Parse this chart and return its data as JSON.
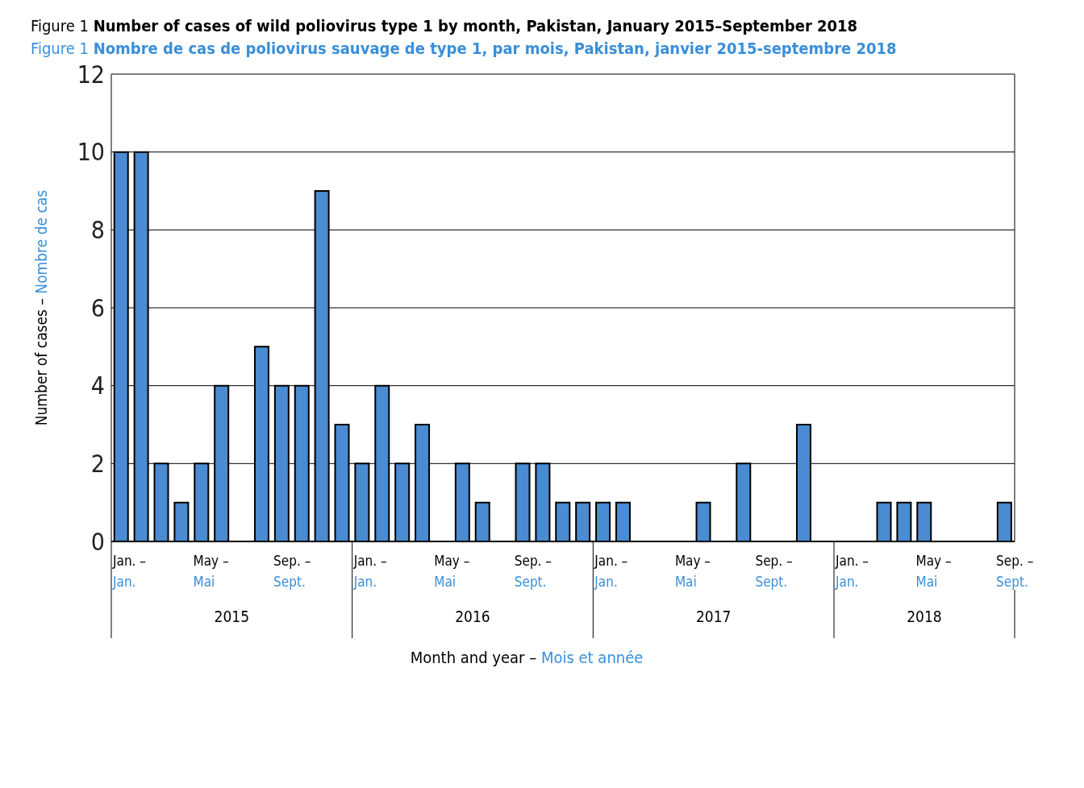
{
  "chart_data": {
    "type": "bar",
    "title": "Figure 1  Number of cases of wild poliovirus type 1 by month, Pakistan, January 2015–September 2018",
    "subtitle": "Figure 1  Nombre de cas de poliovirus sauvage de type 1, par mois, Pakistan, janvier 2015-septembre 2018",
    "categories": [
      "Jan. – Jan.",
      null,
      null,
      null,
      "May – Mai",
      null,
      null,
      null,
      "Sep. – Sept.",
      null,
      null,
      null,
      "Jan. – Jan.",
      null,
      null,
      null,
      "May – Mai",
      null,
      null,
      null,
      "Sep. – Sept.",
      null,
      null,
      null,
      "Jan. – Jan.",
      null,
      null,
      null,
      "May – Mai",
      null,
      null,
      null,
      "Sep. – Sept.",
      null,
      null,
      null,
      "Jan. – Jan.",
      null,
      null,
      null,
      "May – Mai",
      null,
      null,
      null,
      "Sep. – Sept."
    ],
    "values": [
      10,
      10,
      2,
      1,
      2,
      4,
      0,
      5,
      4,
      4,
      9,
      3,
      2,
      4,
      2,
      3,
      0,
      2,
      1,
      0,
      2,
      2,
      1,
      1,
      1,
      1,
      0,
      0,
      0,
      1,
      0,
      2,
      0,
      0,
      3,
      0,
      0,
      0,
      1,
      1,
      1,
      0,
      0,
      0,
      1
    ],
    "color": "#4a8bd1",
    "ylim": [
      0,
      12
    ],
    "yticks": [
      0,
      2,
      4,
      6,
      8,
      10,
      12
    ],
    "grid": "y",
    "xlabel": "Month and year – Mois et année",
    "ylabel": "Number of cases – Nombre de cas",
    "annotations": [
      "2015",
      "2016",
      "2017",
      "2018"
    ]
  }
}
